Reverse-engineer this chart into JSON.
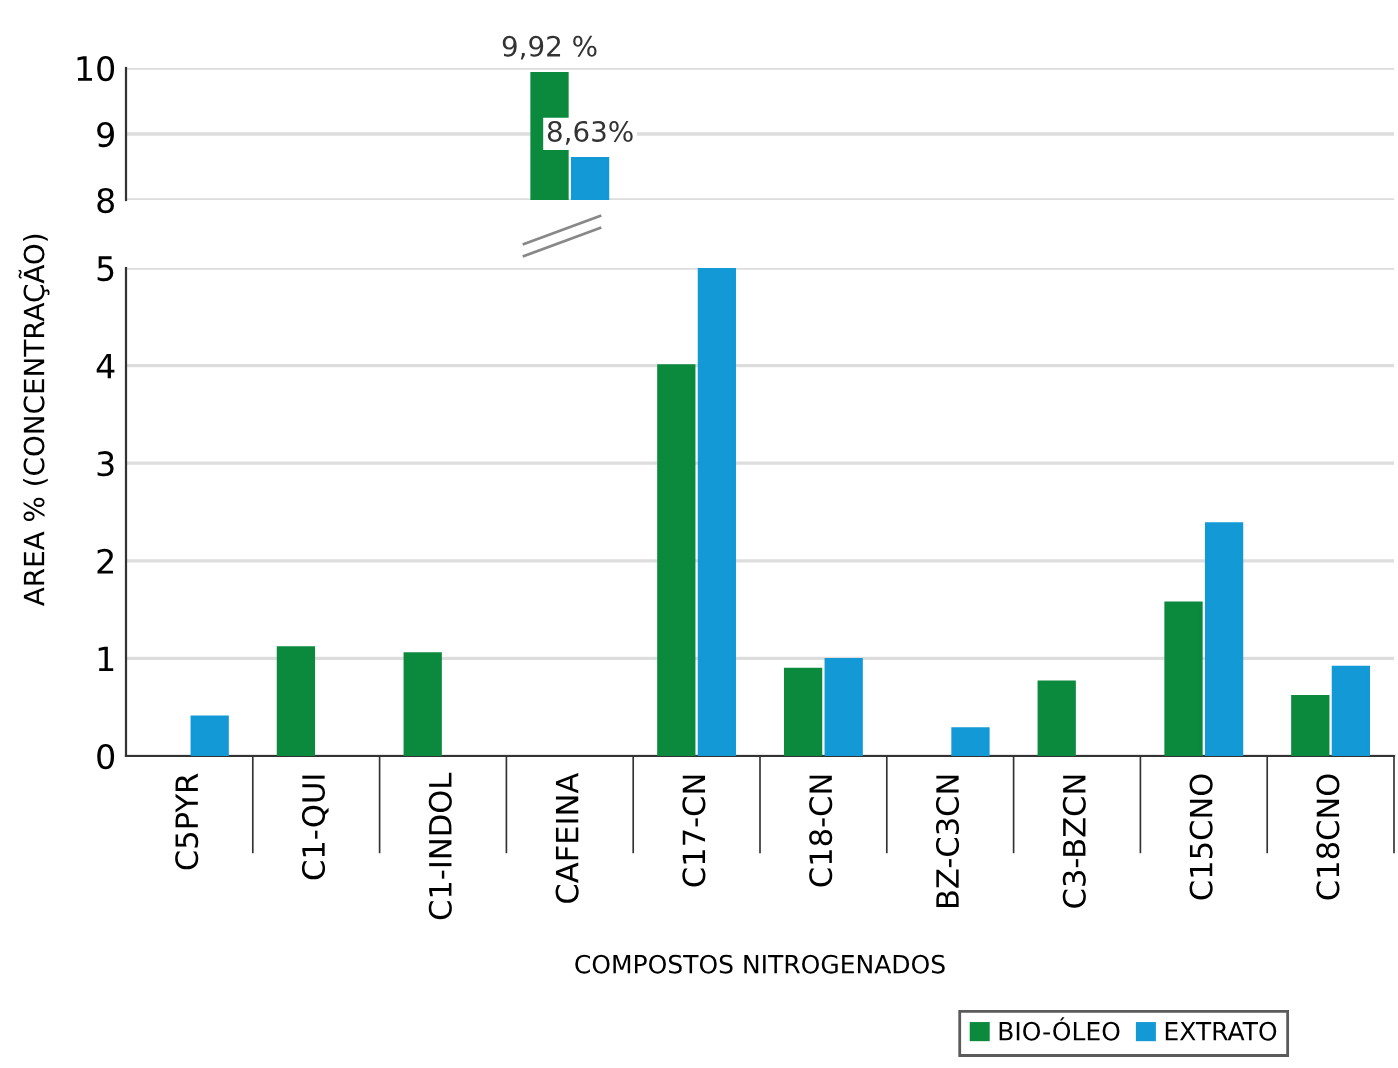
{
  "chart_data": [
    {
      "type": "bar",
      "categories": [
        null,
        null,
        null,
        null,
        null,
        null,
        null,
        null,
        null,
        null
      ],
      "series": [
        {
          "color": "#0b8a3e",
          "values": [
            null,
            null,
            null,
            9.92,
            null,
            null,
            null,
            null,
            null,
            null
          ],
          "value_labels": [
            null,
            null,
            null,
            "9,92 %",
            null,
            null,
            null,
            null,
            null,
            null
          ]
        },
        {
          "color": "#1299d6",
          "values": [
            null,
            null,
            null,
            8.63,
            null,
            null,
            null,
            null,
            null,
            null
          ],
          "value_labels": [
            null,
            null,
            null,
            "8,63%",
            null,
            null,
            null,
            null,
            null,
            null
          ]
        }
      ],
      "ylim": [
        8,
        10
      ],
      "yticks": [
        8,
        9,
        10
      ],
      "grid": "y",
      "tick_labels": "y"
    },
    {
      "type": "bar",
      "categories": [
        "C5PYR",
        "C1-QUI",
        "C1-INDOL",
        "CAFEINA",
        "C17-CN",
        "C18-CN",
        "BZ-C3CN",
        "C3-BZCN",
        "C15CNO",
        "C18CNO"
      ],
      "series": [
        {
          "name": "BIO-ÓLEO",
          "color": "#0b8a3e",
          "values": [
            null,
            1.11,
            1.05,
            null,
            4.0,
            0.89,
            null,
            0.76,
            1.57,
            0.61
          ]
        },
        {
          "name": "EXTRATO",
          "color": "#1299d6",
          "values": [
            0.4,
            null,
            null,
            null,
            5.0,
            0.99,
            0.28,
            null,
            2.38,
            0.91
          ]
        }
      ],
      "ylim": [
        0,
        5
      ],
      "yticks": [
        0,
        1,
        2,
        3,
        4,
        5
      ],
      "grid": "y",
      "xlabel": "COMPOSTOS NITROGENADOS",
      "ylabel": "AREA % (CONCENTRAÇÃO)",
      "legend": "bottom right"
    }
  ]
}
